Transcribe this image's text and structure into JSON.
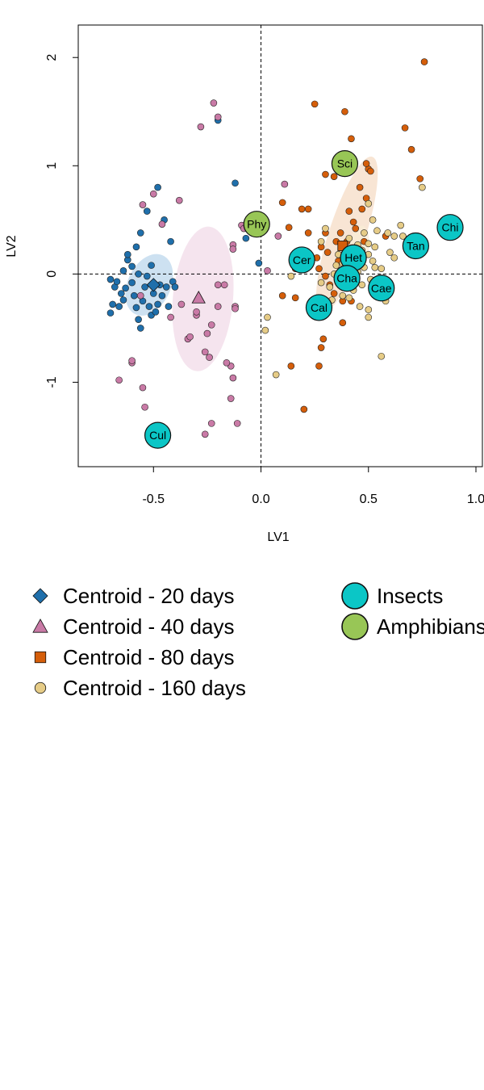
{
  "chart_data": {
    "type": "scatter",
    "xlabel": "LV1",
    "ylabel": "LV2",
    "xlim": [
      -0.85,
      1.03
    ],
    "ylim": [
      -1.78,
      2.3
    ],
    "x_ticks": [
      {
        "value": -0.5,
        "label": "-0.5"
      },
      {
        "value": 0.0,
        "label": "0.0"
      },
      {
        "value": 0.5,
        "label": "0.5"
      },
      {
        "value": 1.0,
        "label": "1.0"
      }
    ],
    "y_ticks": [
      {
        "value": -1,
        "label": "-1"
      },
      {
        "value": 0,
        "label": "0"
      },
      {
        "value": 1,
        "label": "1"
      },
      {
        "value": 2,
        "label": "2"
      }
    ],
    "reference_lines": {
      "x": 0,
      "y": 0,
      "style": "dashed"
    },
    "colors": {
      "d20": "#1f6fab",
      "d40": "#c97aa6",
      "d80": "#d55e0a",
      "d160": "#e6cc87",
      "insects": "#0bc6c6",
      "amphibians": "#98c656"
    },
    "ellipses": [
      {
        "group": "d20",
        "cx": -0.52,
        "cy": -0.1,
        "rx": 0.1,
        "ry": 0.3,
        "angle": 25,
        "color": "#bcd7ec"
      },
      {
        "group": "d40",
        "cx": -0.27,
        "cy": -0.23,
        "rx": 0.14,
        "ry": 0.67,
        "angle": 5,
        "color": "#f2dbe8"
      },
      {
        "group": "d80",
        "cx": 0.4,
        "cy": 0.36,
        "rx": 0.085,
        "ry": 0.76,
        "angle": 18,
        "color": "#f6dcc6"
      },
      {
        "group": "d160",
        "cx": 0.45,
        "cy": 0.2,
        "rx": 0.05,
        "ry": 0.25,
        "angle": 10,
        "color": "#f9ecd6"
      }
    ],
    "series": [
      {
        "key": "d20",
        "points": [
          [
            -0.7,
            -0.05
          ],
          [
            -0.69,
            -0.28
          ],
          [
            -0.7,
            -0.36
          ],
          [
            -0.68,
            -0.12
          ],
          [
            -0.67,
            -0.07
          ],
          [
            -0.66,
            -0.3
          ],
          [
            -0.65,
            -0.18
          ],
          [
            -0.64,
            -0.24
          ],
          [
            -0.63,
            -0.13
          ],
          [
            -0.62,
            0.13
          ],
          [
            -0.6,
            -0.08
          ],
          [
            -0.59,
            -0.2
          ],
          [
            -0.58,
            -0.31
          ],
          [
            -0.57,
            -0.42
          ],
          [
            -0.56,
            -0.5
          ],
          [
            -0.55,
            -0.25
          ],
          [
            -0.54,
            -0.12
          ],
          [
            -0.53,
            -0.02
          ],
          [
            -0.52,
            -0.3
          ],
          [
            -0.51,
            -0.38
          ],
          [
            -0.5,
            -0.18
          ],
          [
            -0.49,
            -0.35
          ],
          [
            -0.48,
            -0.28
          ],
          [
            -0.47,
            -0.1
          ],
          [
            -0.46,
            -0.2
          ],
          [
            -0.44,
            -0.12
          ],
          [
            -0.43,
            -0.3
          ],
          [
            -0.41,
            -0.07
          ],
          [
            -0.4,
            -0.12
          ],
          [
            -0.62,
            0.18
          ],
          [
            -0.6,
            0.07
          ],
          [
            -0.58,
            0.25
          ],
          [
            -0.56,
            0.38
          ],
          [
            -0.53,
            0.58
          ],
          [
            -0.48,
            0.8
          ],
          [
            -0.45,
            0.5
          ],
          [
            -0.42,
            0.3
          ],
          [
            -0.2,
            1.42
          ],
          [
            -0.12,
            0.84
          ],
          [
            -0.07,
            0.33
          ],
          [
            -0.01,
            0.1
          ],
          [
            -0.64,
            0.03
          ],
          [
            -0.57,
            0.0
          ],
          [
            -0.51,
            0.08
          ]
        ]
      },
      {
        "key": "d40",
        "points": [
          [
            -0.66,
            -0.98
          ],
          [
            -0.6,
            -0.82
          ],
          [
            -0.6,
            -0.8
          ],
          [
            -0.55,
            -1.05
          ],
          [
            -0.54,
            -1.23
          ],
          [
            -0.56,
            -0.2
          ],
          [
            -0.55,
            0.64
          ],
          [
            -0.5,
            0.74
          ],
          [
            -0.46,
            0.46
          ],
          [
            -0.38,
            0.68
          ],
          [
            -0.37,
            -0.28
          ],
          [
            -0.34,
            -0.6
          ],
          [
            -0.33,
            -0.58
          ],
          [
            -0.3,
            -0.38
          ],
          [
            -0.3,
            -0.35
          ],
          [
            -0.26,
            -0.72
          ],
          [
            -0.24,
            -0.77
          ],
          [
            -0.23,
            -0.47
          ],
          [
            -0.25,
            -0.55
          ],
          [
            -0.2,
            -0.1
          ],
          [
            -0.2,
            -0.3
          ],
          [
            -0.17,
            -0.1
          ],
          [
            -0.22,
            1.58
          ],
          [
            -0.2,
            1.45
          ],
          [
            -0.28,
            1.36
          ],
          [
            -0.14,
            -0.85
          ],
          [
            -0.13,
            -0.96
          ],
          [
            -0.14,
            -1.15
          ],
          [
            -0.12,
            -0.3
          ],
          [
            -0.12,
            -0.32
          ],
          [
            -0.11,
            -1.38
          ],
          [
            -0.13,
            0.27
          ],
          [
            -0.13,
            0.23
          ],
          [
            -0.09,
            0.45
          ],
          [
            -0.08,
            0.42
          ],
          [
            -0.26,
            -1.48
          ],
          [
            -0.23,
            -1.38
          ],
          [
            0.03,
            0.03
          ],
          [
            0.08,
            0.35
          ],
          [
            0.11,
            0.83
          ],
          [
            -0.16,
            -0.82
          ],
          [
            -0.42,
            -0.4
          ]
        ]
      },
      {
        "key": "d80",
        "points": [
          [
            0.25,
            1.57
          ],
          [
            0.39,
            1.5
          ],
          [
            0.42,
            1.25
          ],
          [
            0.3,
            0.92
          ],
          [
            0.34,
            0.9
          ],
          [
            0.46,
            0.8
          ],
          [
            0.49,
            0.7
          ],
          [
            0.5,
            0.97
          ],
          [
            0.47,
            0.6
          ],
          [
            0.43,
            0.48
          ],
          [
            0.4,
            0.3
          ],
          [
            0.37,
            0.38
          ],
          [
            0.35,
            0.3
          ],
          [
            0.3,
            0.38
          ],
          [
            0.28,
            0.25
          ],
          [
            0.26,
            0.15
          ],
          [
            0.27,
            0.05
          ],
          [
            0.3,
            -0.02
          ],
          [
            0.32,
            -0.1
          ],
          [
            0.34,
            -0.18
          ],
          [
            0.38,
            -0.25
          ],
          [
            0.42,
            -0.25
          ],
          [
            0.36,
            0.12
          ],
          [
            0.31,
            0.2
          ],
          [
            0.22,
            0.6
          ],
          [
            0.29,
            -0.6
          ],
          [
            0.28,
            -0.68
          ],
          [
            0.27,
            -0.85
          ],
          [
            0.16,
            -0.22
          ],
          [
            0.1,
            -0.2
          ],
          [
            0.1,
            0.66
          ],
          [
            0.13,
            0.43
          ],
          [
            0.16,
            0.05
          ],
          [
            0.14,
            -0.85
          ],
          [
            0.2,
            -1.25
          ],
          [
            0.38,
            -0.45
          ],
          [
            0.67,
            1.35
          ],
          [
            0.7,
            1.15
          ],
          [
            0.74,
            0.88
          ],
          [
            0.76,
            1.96
          ],
          [
            0.49,
            1.02
          ],
          [
            0.51,
            0.95
          ],
          [
            0.44,
            0.42
          ],
          [
            0.4,
            0.1
          ],
          [
            0.45,
            0.12
          ],
          [
            0.41,
            0.58
          ],
          [
            0.48,
            0.3
          ],
          [
            0.22,
            0.38
          ],
          [
            0.19,
            0.6
          ],
          [
            0.58,
            0.35
          ]
        ]
      },
      {
        "key": "d160",
        "points": [
          [
            0.41,
            0.33
          ],
          [
            0.45,
            0.27
          ],
          [
            0.47,
            0.22
          ],
          [
            0.5,
            0.18
          ],
          [
            0.52,
            0.12
          ],
          [
            0.53,
            0.06
          ],
          [
            0.48,
            0.06
          ],
          [
            0.45,
            0.02
          ],
          [
            0.42,
            -0.05
          ],
          [
            0.4,
            -0.1
          ],
          [
            0.38,
            0.1
          ],
          [
            0.36,
            0.18
          ],
          [
            0.36,
            -0.05
          ],
          [
            0.34,
            0.0
          ],
          [
            0.32,
            -0.12
          ],
          [
            0.38,
            -0.2
          ],
          [
            0.43,
            -0.15
          ],
          [
            0.47,
            -0.1
          ],
          [
            0.51,
            -0.05
          ],
          [
            0.55,
            -0.2
          ],
          [
            0.58,
            -0.25
          ],
          [
            0.6,
            0.2
          ],
          [
            0.62,
            0.35
          ],
          [
            0.65,
            0.45
          ],
          [
            0.59,
            0.38
          ],
          [
            0.54,
            0.4
          ],
          [
            0.52,
            0.5
          ],
          [
            0.5,
            0.65
          ],
          [
            0.5,
            0.28
          ],
          [
            0.48,
            0.38
          ],
          [
            0.5,
            -0.33
          ],
          [
            0.56,
            -0.76
          ],
          [
            0.5,
            -0.4
          ],
          [
            0.3,
            -0.3
          ],
          [
            0.28,
            0.3
          ],
          [
            0.14,
            -0.02
          ],
          [
            0.02,
            -0.52
          ],
          [
            0.03,
            -0.4
          ],
          [
            0.07,
            -0.93
          ],
          [
            0.62,
            0.15
          ],
          [
            0.66,
            0.35
          ],
          [
            0.75,
            0.8
          ],
          [
            0.3,
            0.42
          ],
          [
            0.44,
            0.2
          ],
          [
            0.39,
            0.25
          ],
          [
            0.35,
            0.08
          ],
          [
            0.41,
            -0.22
          ],
          [
            0.53,
            0.25
          ],
          [
            0.46,
            -0.3
          ],
          [
            0.33,
            -0.24
          ],
          [
            0.56,
            0.05
          ],
          [
            0.28,
            -0.08
          ]
        ]
      }
    ],
    "centroids": [
      {
        "key": "d20",
        "shape": "diamond",
        "x": -0.5,
        "y": -0.1
      },
      {
        "key": "d40",
        "shape": "triangle",
        "x": -0.29,
        "y": -0.22
      },
      {
        "key": "d80",
        "shape": "square",
        "x": 0.38,
        "y": 0.26
      },
      {
        "key": "d160",
        "shape": "circle",
        "x": 0.42,
        "y": 0.08
      }
    ],
    "taxa": [
      {
        "label": "Sci",
        "group": "amphibians",
        "x": 0.39,
        "y": 1.02
      },
      {
        "label": "Phy",
        "group": "amphibians",
        "x": -0.02,
        "y": 0.46
      },
      {
        "label": "Chi",
        "group": "insects",
        "x": 0.88,
        "y": 0.43
      },
      {
        "label": "Tan",
        "group": "insects",
        "x": 0.72,
        "y": 0.26
      },
      {
        "label": "Cer",
        "group": "insects",
        "x": 0.19,
        "y": 0.13
      },
      {
        "label": "Het",
        "group": "insects",
        "x": 0.43,
        "y": 0.15
      },
      {
        "label": "Cha",
        "group": "insects",
        "x": 0.4,
        "y": -0.04
      },
      {
        "label": "Cae",
        "group": "insects",
        "x": 0.56,
        "y": -0.13
      },
      {
        "label": "Cal",
        "group": "insects",
        "x": 0.27,
        "y": -0.31
      },
      {
        "label": "Cul",
        "group": "insects",
        "x": -0.48,
        "y": -1.49
      }
    ],
    "legend": {
      "left": [
        {
          "key": "d20",
          "shape": "diamond",
          "label": "Centroid - 20 days"
        },
        {
          "key": "d40",
          "shape": "triangle",
          "label": "Centroid - 40 days"
        },
        {
          "key": "d80",
          "shape": "square",
          "label": "Centroid - 80 days"
        },
        {
          "key": "d160",
          "shape": "circle",
          "label": "Centroid - 160 days"
        }
      ],
      "right": [
        {
          "key": "insects",
          "shape": "big-circle",
          "label": "Insects"
        },
        {
          "key": "amphibians",
          "shape": "big-circle",
          "label": "Amphibians"
        }
      ]
    }
  }
}
